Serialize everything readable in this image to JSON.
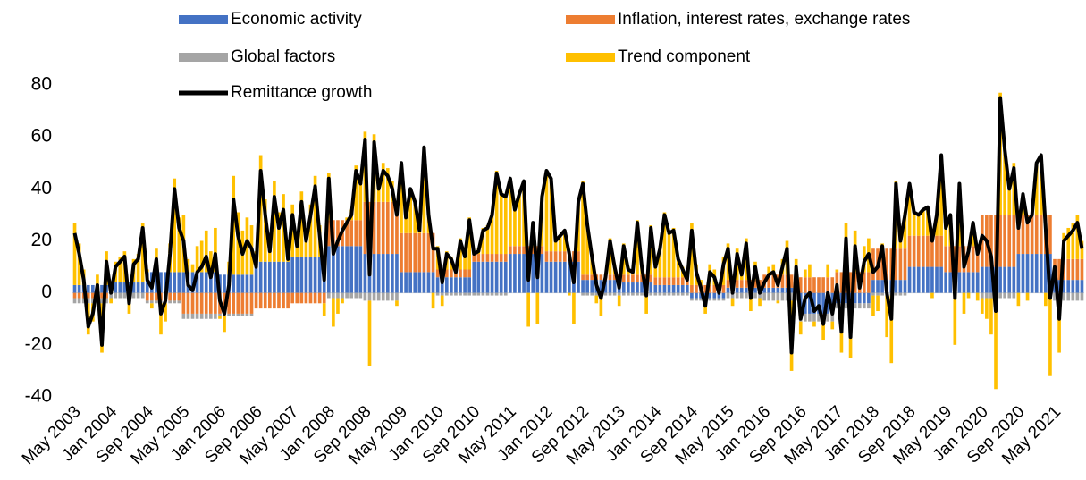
{
  "chart_data": {
    "type": "bar",
    "stacked": true,
    "legend": "top",
    "categories": [
      "May 2003",
      null,
      null,
      null,
      null,
      null,
      null,
      null,
      "Jan 2004",
      null,
      null,
      null,
      null,
      null,
      null,
      null,
      "Sep 2004",
      null,
      null,
      null,
      null,
      null,
      null,
      null,
      "May 2005",
      null,
      null,
      null,
      null,
      null,
      null,
      null,
      "Jan 2006",
      null,
      null,
      null,
      null,
      null,
      null,
      null,
      "Sep 2006",
      null,
      null,
      null,
      null,
      null,
      null,
      null,
      "May 2007",
      null,
      null,
      null,
      null,
      null,
      null,
      null,
      "Jan 2008",
      null,
      null,
      null,
      null,
      null,
      null,
      null,
      "Sep 2008",
      null,
      null,
      null,
      null,
      null,
      null,
      null,
      "May 2009",
      null,
      null,
      null,
      null,
      null,
      null,
      null,
      "Jan 2010",
      null,
      null,
      null,
      null,
      null,
      null,
      null,
      "Sep 2010",
      null,
      null,
      null,
      null,
      null,
      null,
      null,
      "May 2011",
      null,
      null,
      null,
      null,
      null,
      null,
      null,
      "Jan 2012",
      null,
      null,
      null,
      null,
      null,
      null,
      null,
      "Sep 2012",
      null,
      null,
      null,
      null,
      null,
      null,
      null,
      "May 2013",
      null,
      null,
      null,
      null,
      null,
      null,
      null,
      "Jan 2014",
      null,
      null,
      null,
      null,
      null,
      null,
      null,
      "Sep 2014",
      null,
      null,
      null,
      null,
      null,
      null,
      null,
      "May 2015",
      null,
      null,
      null,
      null,
      null,
      null,
      null,
      "Jan 2016",
      null,
      null,
      null,
      null,
      null,
      null,
      null,
      "Sep 2016",
      null,
      null,
      null,
      null,
      null,
      null,
      null,
      "May 2017",
      null,
      null,
      null,
      null,
      null,
      null,
      null,
      "Jan 2018",
      null,
      null,
      null,
      null,
      null,
      null,
      null,
      "Sep 2018",
      null,
      null,
      null,
      null,
      null,
      null,
      null,
      "May 2019",
      null,
      null,
      null,
      null,
      null,
      null,
      null,
      "Jan 2020",
      null,
      null,
      null,
      null,
      null,
      null,
      null,
      "Sep 2020",
      null,
      null,
      null,
      null,
      null,
      null,
      null,
      "May 2021",
      null,
      null,
      null,
      null,
      null,
      null
    ],
    "series": [
      {
        "name": "Economic activity",
        "color": "#4472c4",
        "values": [
          3,
          3,
          3,
          3,
          3,
          3,
          3,
          3,
          4,
          4,
          4,
          4,
          4,
          4,
          4,
          4,
          8,
          8,
          8,
          8,
          8,
          8,
          8,
          8,
          8,
          8,
          8,
          8,
          8,
          8,
          8,
          8,
          7,
          7,
          7,
          7,
          7,
          7,
          7,
          7,
          12,
          12,
          12,
          12,
          12,
          12,
          12,
          12,
          14,
          14,
          14,
          14,
          14,
          14,
          14,
          14,
          18,
          18,
          18,
          18,
          18,
          18,
          18,
          18,
          15,
          15,
          15,
          15,
          15,
          15,
          15,
          15,
          8,
          8,
          8,
          8,
          8,
          8,
          8,
          8,
          6,
          6,
          6,
          6,
          6,
          6,
          6,
          6,
          12,
          12,
          12,
          12,
          12,
          12,
          12,
          12,
          15,
          15,
          15,
          15,
          15,
          15,
          15,
          15,
          12,
          12,
          12,
          12,
          12,
          12,
          12,
          12,
          5,
          5,
          5,
          5,
          5,
          5,
          5,
          5,
          4,
          4,
          4,
          4,
          4,
          4,
          4,
          4,
          3,
          3,
          3,
          3,
          3,
          3,
          3,
          3,
          -2,
          -2,
          -2,
          -2,
          -2,
          -2,
          -2,
          -2,
          2,
          2,
          2,
          2,
          2,
          2,
          2,
          2,
          2,
          2,
          2,
          2,
          2,
          2,
          2,
          2,
          -8,
          -8,
          -8,
          -8,
          -8,
          -8,
          -8,
          -8,
          -4,
          -4,
          -4,
          -4,
          -4,
          -4,
          -4,
          -4,
          5,
          5,
          5,
          5,
          5,
          5,
          5,
          5,
          10,
          10,
          10,
          10,
          10,
          10,
          10,
          10,
          8,
          8,
          8,
          8,
          8,
          8,
          8,
          8,
          10,
          10,
          10,
          10,
          10,
          10,
          10,
          10,
          15,
          15,
          15,
          15,
          15,
          15,
          15,
          15,
          5,
          5,
          5,
          5,
          5,
          5,
          5
        ]
      },
      {
        "name": "Inflation, interest rates, exchange rates",
        "color": "#ed7d31",
        "values": [
          -2,
          -2,
          -2,
          -2,
          -2,
          -2,
          -2,
          -2,
          0,
          0,
          0,
          0,
          0,
          0,
          0,
          0,
          -3,
          -3,
          -3,
          -3,
          -3,
          -3,
          -3,
          -3,
          -8,
          -8,
          -8,
          -8,
          -8,
          -8,
          -8,
          -8,
          -8,
          -8,
          -8,
          -8,
          -8,
          -8,
          -8,
          -8,
          -6,
          -6,
          -6,
          -6,
          -6,
          -6,
          -6,
          -6,
          -4,
          -4,
          -4,
          -4,
          -4,
          -4,
          -4,
          -4,
          10,
          10,
          10,
          10,
          10,
          10,
          10,
          10,
          20,
          20,
          20,
          20,
          20,
          20,
          20,
          20,
          15,
          15,
          15,
          15,
          15,
          15,
          15,
          15,
          3,
          3,
          3,
          3,
          3,
          3,
          3,
          3,
          3,
          3,
          3,
          3,
          3,
          3,
          3,
          3,
          3,
          3,
          3,
          3,
          3,
          3,
          3,
          3,
          4,
          4,
          4,
          4,
          4,
          4,
          4,
          4,
          2,
          2,
          2,
          2,
          2,
          2,
          2,
          2,
          3,
          3,
          3,
          3,
          3,
          3,
          3,
          3,
          3,
          3,
          3,
          3,
          3,
          3,
          3,
          3,
          3,
          3,
          3,
          3,
          3,
          3,
          3,
          3,
          3,
          3,
          3,
          3,
          3,
          3,
          3,
          3,
          5,
          5,
          5,
          5,
          5,
          5,
          5,
          5,
          6,
          6,
          6,
          6,
          6,
          6,
          6,
          6,
          8,
          8,
          8,
          8,
          8,
          8,
          8,
          8,
          12,
          12,
          12,
          12,
          12,
          12,
          12,
          12,
          12,
          12,
          12,
          12,
          12,
          12,
          12,
          12,
          10,
          10,
          10,
          10,
          10,
          10,
          10,
          10,
          20,
          20,
          20,
          20,
          20,
          20,
          20,
          20,
          15,
          15,
          15,
          15,
          15,
          15,
          15,
          15,
          8,
          8,
          8,
          8,
          8,
          8,
          8
        ]
      },
      {
        "name": "Global factors",
        "color": "#a5a5a5",
        "values": [
          -2,
          -2,
          -2,
          -2,
          -2,
          -2,
          -2,
          -2,
          -2,
          -2,
          -2,
          -2,
          -2,
          -2,
          -2,
          -2,
          -1,
          -1,
          -1,
          -1,
          -1,
          -1,
          -1,
          -1,
          -2,
          -2,
          -2,
          -2,
          -2,
          -2,
          -2,
          -2,
          -1,
          -1,
          -1,
          -1,
          -1,
          -1,
          -1,
          -1,
          0,
          0,
          0,
          0,
          0,
          0,
          0,
          0,
          0,
          0,
          0,
          0,
          0,
          0,
          0,
          0,
          -2,
          -2,
          -2,
          -2,
          -2,
          -2,
          -2,
          -2,
          -3,
          -3,
          -3,
          -3,
          -3,
          -3,
          -3,
          -3,
          0,
          0,
          0,
          0,
          0,
          0,
          0,
          0,
          -1,
          -1,
          -1,
          -1,
          -1,
          -1,
          -1,
          -1,
          -1,
          -1,
          -1,
          -1,
          -1,
          -1,
          -1,
          -1,
          0,
          0,
          0,
          0,
          0,
          0,
          0,
          0,
          0,
          0,
          0,
          0,
          0,
          0,
          0,
          0,
          -1,
          -1,
          -1,
          -1,
          -1,
          -1,
          -1,
          -1,
          -1,
          -1,
          -1,
          -1,
          -1,
          -1,
          -1,
          -1,
          -1,
          -1,
          -1,
          -1,
          -1,
          -1,
          -1,
          -1,
          -1,
          -1,
          -1,
          -1,
          -1,
          -1,
          -1,
          -1,
          -2,
          -2,
          -2,
          -2,
          -2,
          -2,
          -2,
          -2,
          -3,
          -3,
          -3,
          -3,
          -3,
          -3,
          -3,
          -3,
          -3,
          -3,
          -3,
          -3,
          -3,
          -3,
          -3,
          -3,
          -2,
          -2,
          -2,
          -2,
          -2,
          -2,
          -2,
          -2,
          -1,
          -1,
          -1,
          -1,
          -1,
          -1,
          -1,
          -1,
          0,
          0,
          0,
          0,
          0,
          0,
          0,
          0,
          0,
          0,
          0,
          0,
          0,
          0,
          0,
          0,
          -2,
          -2,
          -2,
          -2,
          -2,
          -2,
          -2,
          -2,
          0,
          0,
          0,
          0,
          0,
          0,
          0,
          0,
          -3,
          -3,
          -3,
          -3,
          -3,
          -3,
          -3
        ]
      },
      {
        "name": "Trend component",
        "color": "#ffc000",
        "values": [
          24,
          16,
          6,
          -12,
          -7,
          4,
          -19,
          13,
          -2,
          8,
          10,
          12,
          -6,
          9,
          11,
          23,
          1,
          -2,
          9,
          -12,
          -7,
          11,
          36,
          21,
          22,
          5,
          3,
          10,
          12,
          16,
          8,
          17,
          -1,
          -6,
          5,
          38,
          24,
          17,
          22,
          19,
          4,
          41,
          24,
          10,
          31,
          19,
          26,
          7,
          20,
          8,
          25,
          10,
          20,
          31,
          12,
          -5,
          18,
          -11,
          -6,
          -2,
          1,
          4,
          21,
          16,
          27,
          -25,
          26,
          8,
          15,
          13,
          8,
          -2,
          27,
          6,
          17,
          12,
          1,
          33,
          7,
          -6,
          9,
          -4,
          7,
          5,
          0,
          12,
          6,
          20,
          1,
          2,
          10,
          11,
          16,
          32,
          24,
          23,
          26,
          14,
          20,
          25,
          -13,
          9,
          -12,
          19,
          31,
          28,
          4,
          6,
          8,
          -1,
          -12,
          19,
          36,
          20,
          8,
          -3,
          -8,
          0,
          14,
          4,
          -4,
          12,
          3,
          2,
          21,
          4,
          -7,
          19,
          5,
          12,
          25,
          18,
          19,
          8,
          4,
          0,
          24,
          8,
          2,
          -5,
          8,
          6,
          0,
          11,
          14,
          -3,
          12,
          4,
          16,
          -5,
          7,
          -3,
          0,
          3,
          4,
          -1,
          6,
          13,
          -27,
          6,
          -5,
          3,
          5,
          -2,
          0,
          -7,
          5,
          -3,
          1,
          -17,
          19,
          -19,
          16,
          0,
          10,
          13,
          -8,
          -6,
          2,
          -16,
          -26,
          26,
          4,
          14,
          20,
          9,
          8,
          10,
          11,
          -2,
          8,
          31,
          7,
          12,
          -20,
          24,
          -8,
          -2,
          9,
          -3,
          -6,
          -8,
          -14,
          -35,
          47,
          27,
          12,
          20,
          -5,
          8,
          -3,
          0,
          20,
          23,
          -5,
          -32,
          0,
          -20,
          10,
          12,
          14,
          17,
          7
        ]
      },
      {
        "name": "Remittance growth",
        "color": "#000000",
        "type": "line",
        "values": [
          23,
          15,
          5,
          -13,
          -8,
          3,
          -20,
          12,
          0,
          10,
          12,
          14,
          -4,
          11,
          13,
          25,
          5,
          2,
          13,
          -8,
          -3,
          15,
          40,
          25,
          20,
          3,
          1,
          8,
          10,
          14,
          6,
          15,
          -3,
          -8,
          3,
          36,
          22,
          15,
          20,
          17,
          10,
          47,
          30,
          16,
          37,
          25,
          32,
          13,
          30,
          18,
          35,
          20,
          30,
          41,
          22,
          5,
          44,
          15,
          20,
          24,
          27,
          30,
          47,
          42,
          59,
          7,
          58,
          40,
          47,
          45,
          40,
          30,
          50,
          29,
          40,
          35,
          24,
          56,
          30,
          17,
          17,
          4,
          15,
          13,
          8,
          20,
          14,
          28,
          15,
          16,
          24,
          25,
          30,
          46,
          38,
          37,
          44,
          32,
          38,
          43,
          5,
          27,
          6,
          37,
          47,
          44,
          20,
          22,
          24,
          15,
          4,
          35,
          42,
          26,
          14,
          3,
          -2,
          6,
          20,
          10,
          2,
          18,
          9,
          8,
          27,
          10,
          -1,
          25,
          10,
          17,
          30,
          23,
          24,
          13,
          9,
          5,
          24,
          8,
          2,
          -5,
          8,
          6,
          0,
          11,
          17,
          0,
          15,
          7,
          19,
          -2,
          10,
          0,
          4,
          7,
          8,
          3,
          10,
          17,
          -23,
          10,
          -10,
          -2,
          0,
          -7,
          -5,
          -12,
          0,
          -8,
          3,
          -15,
          21,
          -17,
          18,
          2,
          12,
          15,
          8,
          10,
          18,
          0,
          -10,
          42,
          20,
          30,
          42,
          31,
          30,
          32,
          33,
          20,
          30,
          53,
          25,
          30,
          -2,
          42,
          10,
          16,
          27,
          15,
          22,
          20,
          14,
          -7,
          75,
          55,
          40,
          48,
          25,
          38,
          27,
          30,
          50,
          53,
          25,
          -2,
          10,
          -10,
          20,
          22,
          24,
          27,
          17
        ]
      }
    ],
    "ylim": [
      -40,
      80
    ],
    "yticks": [
      -40,
      -20,
      0,
      20,
      40,
      60,
      80
    ],
    "grid": false
  }
}
